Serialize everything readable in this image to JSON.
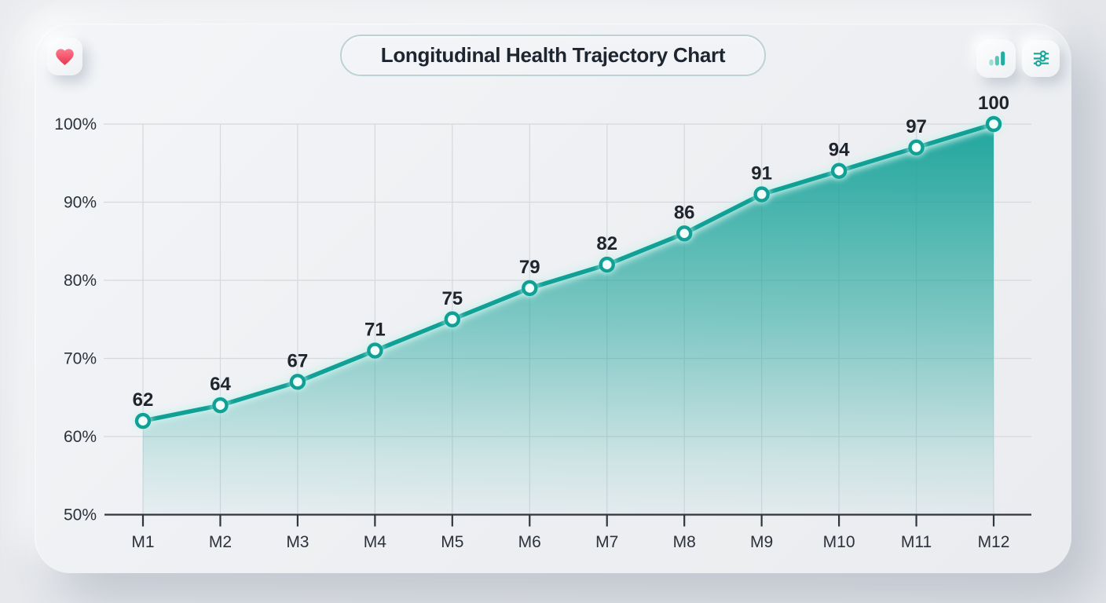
{
  "header": {
    "title": "Longitudinal Health Trajectory Chart",
    "left_button": {
      "icon": "heart-icon"
    },
    "right_buttons": [
      {
        "icon": "bar-chart-icon"
      },
      {
        "icon": "sliders-icon"
      }
    ]
  },
  "colors": {
    "accent_teal": "#11a096",
    "glow_teal": "#cdf2ec",
    "heart_red_top": "#ff7a8c",
    "heart_red_bottom": "#e63650",
    "title_text": "#1d2530",
    "axis_text": "#2c323b",
    "grid_line": "#d5d8dc",
    "axis_line": "#30363d",
    "pill_border": "#bdd2d5",
    "bar_icon_light": "#9edcd4",
    "bar_icon_mid": "#57c5ba",
    "bar_icon_dark": "#23aca0",
    "slider_icon": "#1aa49a"
  },
  "chart_data": {
    "type": "area",
    "title": "Longitudinal Health Trajectory Chart",
    "categories": [
      "M1",
      "M2",
      "M3",
      "M4",
      "M5",
      "M6",
      "M7",
      "M8",
      "M9",
      "M10",
      "M11",
      "M12"
    ],
    "values": [
      62,
      64,
      67,
      71,
      75,
      79,
      82,
      86,
      91,
      94,
      97,
      100
    ],
    "point_labels_shown": true,
    "xlabel": "",
    "ylabel": "",
    "y_ticks": [
      50,
      60,
      70,
      80,
      90,
      100
    ],
    "y_tick_labels": [
      "50%",
      "60%",
      "70%",
      "80%",
      "90%",
      "100%"
    ],
    "ylim": [
      50,
      100
    ],
    "grid": true,
    "legend": false,
    "line_color": "#11a096",
    "marker_fill": "#f2fefc",
    "area_fill_top": "rgba(17,160,150,0.93)",
    "area_fill_bottom": "rgba(17,160,150,0)"
  }
}
